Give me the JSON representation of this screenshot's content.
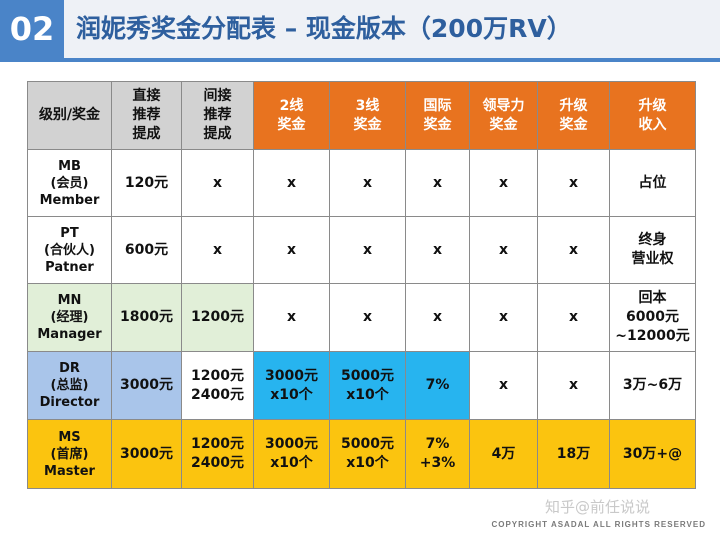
{
  "header": {
    "number": "02",
    "title": "润妮秀奖金分配表 – 现金版本（200万RV）"
  },
  "table": {
    "headers": [
      [
        "级别/奖金"
      ],
      [
        "直接",
        "推荐",
        "提成"
      ],
      [
        "间接",
        "推荐",
        "提成"
      ],
      [
        "2线",
        "奖金"
      ],
      [
        "3线",
        "奖金"
      ],
      [
        "国际",
        "奖金"
      ],
      [
        "领导力",
        "奖金"
      ],
      [
        "升级",
        "奖金"
      ],
      [
        "升级",
        "收入"
      ]
    ],
    "rows": [
      {
        "label": [
          "MB",
          "(会员)",
          "Member"
        ],
        "cells": [
          [
            "120元"
          ],
          [
            "x"
          ],
          [
            "x"
          ],
          [
            "x"
          ],
          [
            "x"
          ],
          [
            "x"
          ],
          [
            "x"
          ],
          [
            "占位"
          ]
        ]
      },
      {
        "label": [
          "PT",
          "(合伙人)",
          "Patner"
        ],
        "cells": [
          [
            "600元"
          ],
          [
            "x"
          ],
          [
            "x"
          ],
          [
            "x"
          ],
          [
            "x"
          ],
          [
            "x"
          ],
          [
            "x"
          ],
          [
            "终身",
            "营业权"
          ]
        ]
      },
      {
        "label": [
          "MN",
          "(经理)",
          "Manager"
        ],
        "cells": [
          [
            "1800元"
          ],
          [
            "1200元"
          ],
          [
            "x"
          ],
          [
            "x"
          ],
          [
            "x"
          ],
          [
            "x"
          ],
          [
            "x"
          ],
          [
            "回本",
            "6000元",
            "~12000元"
          ]
        ]
      },
      {
        "label": [
          "DR",
          "(总监)",
          "Director"
        ],
        "cells": [
          [
            "3000元"
          ],
          [
            "1200元",
            "2400元"
          ],
          [
            "3000元",
            "x10个"
          ],
          [
            "5000元",
            "x10个"
          ],
          [
            "7%"
          ],
          [
            "x"
          ],
          [
            "x"
          ],
          [
            "3万~6万"
          ]
        ]
      },
      {
        "label": [
          "MS",
          "(首席)",
          "Master"
        ],
        "cells": [
          [
            "3000元"
          ],
          [
            "1200元",
            "2400元"
          ],
          [
            "3000元",
            "x10个"
          ],
          [
            "5000元",
            "x10个"
          ],
          [
            "7%",
            "+3%"
          ],
          [
            "4万"
          ],
          [
            "18万"
          ],
          [
            "30万+@"
          ]
        ]
      }
    ]
  },
  "footer": {
    "watermark": "知乎@前任说说",
    "copyright": "COPYRIGHT ASADAL ALL RIGHTS RESERVED"
  },
  "colors": {
    "accent_blue": "#4a84c8",
    "title_blue": "#2e5f9e",
    "header_gray": "#d2d2d2",
    "header_orange": "#e8731f",
    "green": "#e1efd8",
    "light_blue": "#a9c5ea",
    "cyan": "#27b4ef",
    "gold": "#fbc40f"
  }
}
